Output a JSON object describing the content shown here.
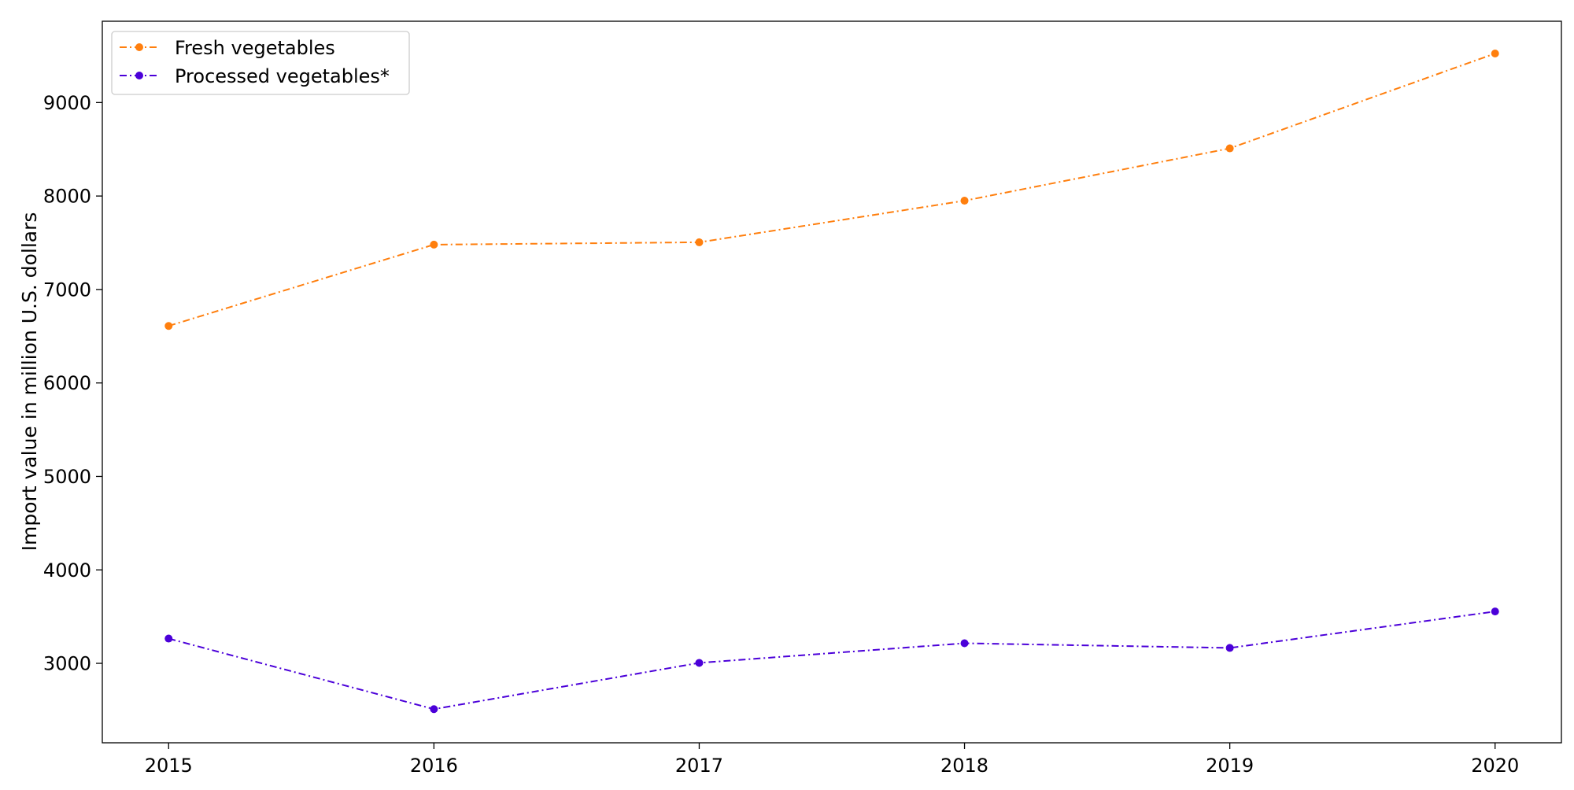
{
  "chart_data": {
    "type": "line",
    "title": "",
    "xlabel": "",
    "ylabel": "Import value in million U.S. dollars",
    "x": [
      2015,
      2016,
      2017,
      2018,
      2019,
      2020
    ],
    "xlim": [
      2014.75,
      2020.25
    ],
    "ylim": [
      2150,
      9870
    ],
    "yticks": [
      3000,
      4000,
      5000,
      6000,
      7000,
      8000,
      9000
    ],
    "grid": false,
    "legend_position": "top-left",
    "series": [
      {
        "name": "Fresh vegetables",
        "color": "#ff7f0e",
        "marker": "circle",
        "line_style": "dash-dot",
        "values": [
          6610,
          7480,
          7505,
          7950,
          8510,
          9525
        ]
      },
      {
        "name": "Processed vegetables*",
        "color": "#4b00d9",
        "marker": "circle",
        "line_style": "dash-dot",
        "values": [
          3265,
          2510,
          3005,
          3215,
          3165,
          3555
        ]
      }
    ]
  }
}
